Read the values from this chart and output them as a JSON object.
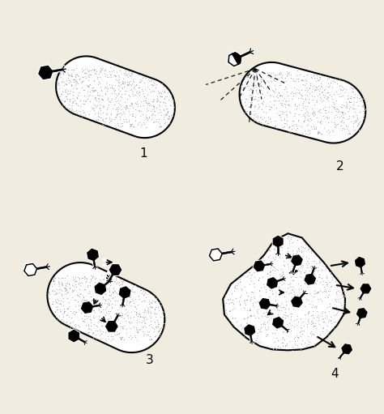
{
  "background_color": "#f0ece0",
  "fig_width": 4.74,
  "fig_height": 5.11,
  "panel_labels": [
    "1",
    "2",
    "3",
    "4"
  ],
  "label_fontsize": 11,
  "stipple_color": "#aaaaaa",
  "stipple_size": 0.8,
  "n_dots": 700
}
